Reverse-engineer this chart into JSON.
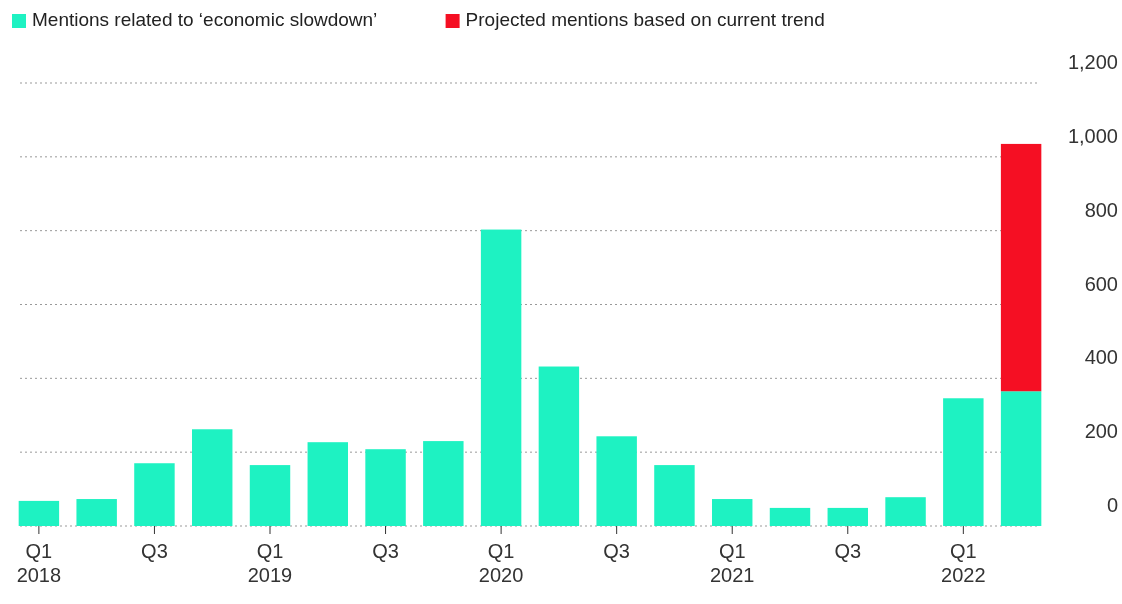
{
  "chart_data": {
    "type": "bar",
    "stacked": true,
    "categories": [
      "Q1\n2018",
      null,
      "Q3",
      null,
      "Q1\n2019",
      null,
      "Q3",
      null,
      "Q1\n2020",
      null,
      "Q3",
      null,
      "Q1\n2021",
      null,
      "Q3",
      null,
      "Q1\n2022",
      null
    ],
    "series": [
      {
        "name": "Mentions related to ‘economic slowdown’",
        "color": "#1ef2c2",
        "values": [
          68,
          73,
          170,
          262,
          165,
          227,
          208,
          230,
          803,
          432,
          243,
          165,
          73,
          49,
          49,
          78,
          346,
          365
        ]
      },
      {
        "name": "Projected mentions based on current trend",
        "color": "#f50f23",
        "values": [
          null,
          null,
          null,
          null,
          null,
          null,
          null,
          null,
          null,
          null,
          null,
          null,
          null,
          null,
          null,
          null,
          null,
          670
        ]
      }
    ],
    "ylim": [
      0,
      1200
    ],
    "yticks": [
      0,
      200,
      400,
      600,
      800,
      {
        "value": 1000,
        "label": "1,000"
      },
      {
        "value": 1200,
        "label": "1,200"
      }
    ],
    "grid": "y",
    "legend": "top left"
  }
}
